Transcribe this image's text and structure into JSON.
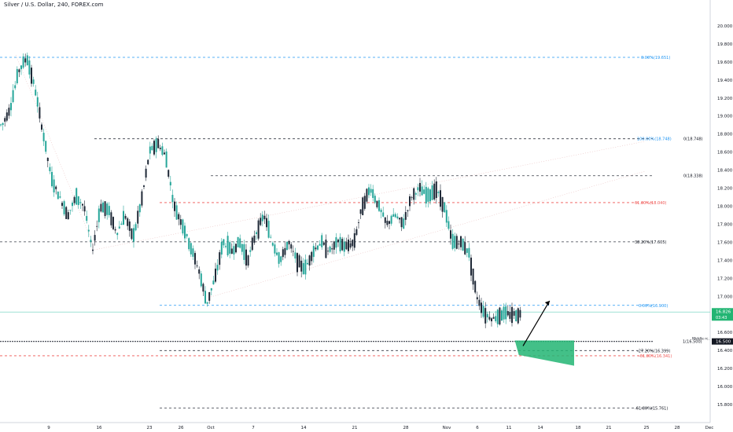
{
  "header": {
    "title": "Silver / U.S. Dollar, 240, FOREX.com"
  },
  "colors": {
    "up": "#26a69a",
    "down": "#1f2937",
    "blue_dash": "#2196f3",
    "red_dash": "#ef5350",
    "black_dash": "#363a45",
    "zone": "#22b573",
    "price_badge": "#22b573",
    "middle_badge": "#131722"
  },
  "chart_data": {
    "type": "candlestick",
    "symbol": "Silver / U.S. Dollar",
    "interval": "240",
    "source": "FOREX.com",
    "ylim": [
      15.6,
      20.2
    ],
    "y_ticks": [
      "15.800",
      "16.000",
      "16.200",
      "16.400",
      "16.600",
      "16.800",
      "17.000",
      "17.200",
      "17.400",
      "17.600",
      "17.800",
      "18.000",
      "18.200",
      "18.400",
      "18.600",
      "18.800",
      "19.000",
      "19.200",
      "19.400",
      "19.600",
      "19.800",
      "20.000"
    ],
    "x_ticks": [
      "9",
      "16",
      "23",
      "26",
      "Oct",
      "7",
      "14",
      "21",
      "28",
      "Nov",
      "6",
      "11",
      "14",
      "18",
      "21",
      "25",
      "28",
      "Dec"
    ],
    "price_path": [
      {
        "x": 0.0,
        "y": 18.9
      },
      {
        "x": 0.4,
        "y": 19.1
      },
      {
        "x": 0.8,
        "y": 19.5
      },
      {
        "x": 1.2,
        "y": 19.65
      },
      {
        "x": 1.6,
        "y": 19.3
      },
      {
        "x": 2.0,
        "y": 18.8
      },
      {
        "x": 2.4,
        "y": 18.3
      },
      {
        "x": 2.8,
        "y": 18.1
      },
      {
        "x": 3.2,
        "y": 17.9
      },
      {
        "x": 3.6,
        "y": 18.1
      },
      {
        "x": 4.0,
        "y": 18.0
      },
      {
        "x": 4.4,
        "y": 17.5
      },
      {
        "x": 4.8,
        "y": 18.0
      },
      {
        "x": 5.2,
        "y": 17.95
      },
      {
        "x": 5.6,
        "y": 17.7
      },
      {
        "x": 6.0,
        "y": 17.9
      },
      {
        "x": 6.4,
        "y": 17.65
      },
      {
        "x": 6.8,
        "y": 18.05
      },
      {
        "x": 7.2,
        "y": 18.6
      },
      {
        "x": 7.6,
        "y": 18.7
      },
      {
        "x": 8.0,
        "y": 18.55
      },
      {
        "x": 8.4,
        "y": 18.0
      },
      {
        "x": 8.8,
        "y": 17.8
      },
      {
        "x": 9.2,
        "y": 17.55
      },
      {
        "x": 9.6,
        "y": 17.3
      },
      {
        "x": 10.0,
        "y": 16.92
      },
      {
        "x": 10.4,
        "y": 17.2
      },
      {
        "x": 10.8,
        "y": 17.6
      },
      {
        "x": 11.2,
        "y": 17.5
      },
      {
        "x": 11.6,
        "y": 17.6
      },
      {
        "x": 12.0,
        "y": 17.4
      },
      {
        "x": 12.4,
        "y": 17.7
      },
      {
        "x": 12.8,
        "y": 17.9
      },
      {
        "x": 13.2,
        "y": 17.6
      },
      {
        "x": 13.6,
        "y": 17.4
      },
      {
        "x": 14.0,
        "y": 17.6
      },
      {
        "x": 14.4,
        "y": 17.4
      },
      {
        "x": 14.8,
        "y": 17.3
      },
      {
        "x": 15.2,
        "y": 17.5
      },
      {
        "x": 15.6,
        "y": 17.6
      },
      {
        "x": 16.0,
        "y": 17.5
      },
      {
        "x": 16.4,
        "y": 17.6
      },
      {
        "x": 16.8,
        "y": 17.55
      },
      {
        "x": 17.2,
        "y": 17.6
      },
      {
        "x": 17.6,
        "y": 18.0
      },
      {
        "x": 18.0,
        "y": 18.2
      },
      {
        "x": 18.4,
        "y": 18.0
      },
      {
        "x": 18.8,
        "y": 17.8
      },
      {
        "x": 19.2,
        "y": 17.9
      },
      {
        "x": 19.6,
        "y": 17.8
      },
      {
        "x": 20.0,
        "y": 18.1
      },
      {
        "x": 20.4,
        "y": 18.2
      },
      {
        "x": 20.8,
        "y": 18.1
      },
      {
        "x": 21.2,
        "y": 18.2
      },
      {
        "x": 21.6,
        "y": 18.0
      },
      {
        "x": 22.0,
        "y": 17.6
      },
      {
        "x": 22.4,
        "y": 17.6
      },
      {
        "x": 22.8,
        "y": 17.5
      },
      {
        "x": 23.2,
        "y": 17.0
      },
      {
        "x": 23.6,
        "y": 16.8
      },
      {
        "x": 24.0,
        "y": 16.75
      },
      {
        "x": 24.4,
        "y": 16.8
      }
    ],
    "levels": [
      {
        "label": "0.00%(19.651)",
        "price": 19.651,
        "style": "blue"
      },
      {
        "label": "0(18.748)",
        "price": 18.748,
        "style": "black"
      },
      {
        "label": "100.00%(18.748)",
        "price": 18.748,
        "style": "blue"
      },
      {
        "label": "0(18.338)",
        "price": 18.338,
        "style": "black"
      },
      {
        "label": "61.80%(18.040)",
        "price": 18.04,
        "style": "red"
      },
      {
        "label": "38.20%(17.605)",
        "price": 17.605,
        "style": "black"
      },
      {
        "label": "0.00%(16.900)",
        "price": 16.9,
        "style": "blue"
      },
      {
        "label": "1(16.500)",
        "price": 16.5,
        "style": "black"
      },
      {
        "label": "-27.20%(16.399)",
        "price": 16.399,
        "style": "black"
      },
      {
        "label": "-61.80%(16.341)",
        "price": 16.341,
        "style": "red"
      },
      {
        "label": "-61.80%(15.761)",
        "price": 15.761,
        "style": "black"
      }
    ],
    "current_price": {
      "value": "16.826",
      "time_left": "03:43"
    },
    "middle_label": {
      "text": "Middle rc.",
      "value": "16.500"
    },
    "projection_arrow": {
      "from": {
        "x": 25.5,
        "y": 16.45
      },
      "to": {
        "x": 26.8,
        "y": 16.95
      }
    },
    "target_zone": {
      "x_from": 25.1,
      "x_to": 28.0,
      "top": 16.51,
      "bottom": 16.23
    }
  }
}
